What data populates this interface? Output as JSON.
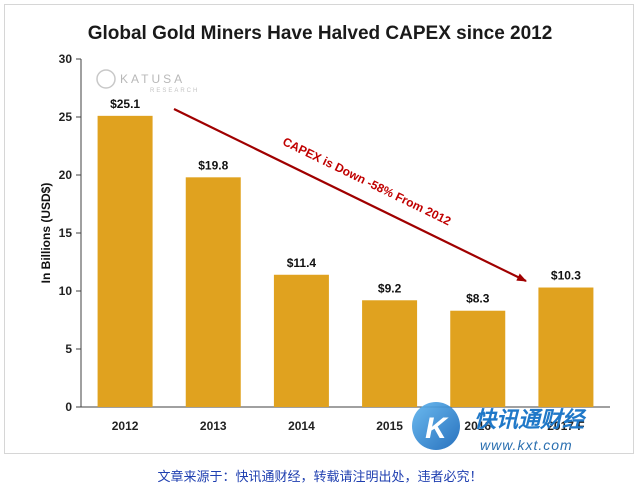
{
  "chart_data": {
    "type": "bar",
    "title": "Global Gold Miners Have Halved CAPEX since 2012",
    "ylabel": "In Billions (USD$)",
    "xlabel": "",
    "categories": [
      "2012",
      "2013",
      "2014",
      "2015",
      "2016",
      "2017 F"
    ],
    "values": [
      25.1,
      19.8,
      11.4,
      9.2,
      8.3,
      10.3
    ],
    "data_labels": [
      "$25.1",
      "$19.8",
      "$11.4",
      "$9.2",
      "$8.3",
      "$10.3"
    ],
    "ylim": [
      0,
      30
    ],
    "yticks": [
      "0",
      "5",
      "10",
      "15",
      "20",
      "25",
      "30"
    ],
    "grid": false,
    "bar_color": "#e0a21f",
    "annotation": {
      "text": "CAPEX is Down -58% From 2012",
      "color": "#b00000"
    }
  },
  "watermark": {
    "name": "KATUSA",
    "sub": "RESEARCH"
  },
  "brand": {
    "text": "快讯通财经",
    "url": "www.kxt.com"
  },
  "footer": "文章来源于：快讯通财经，转载请注明出处，违者必究！"
}
